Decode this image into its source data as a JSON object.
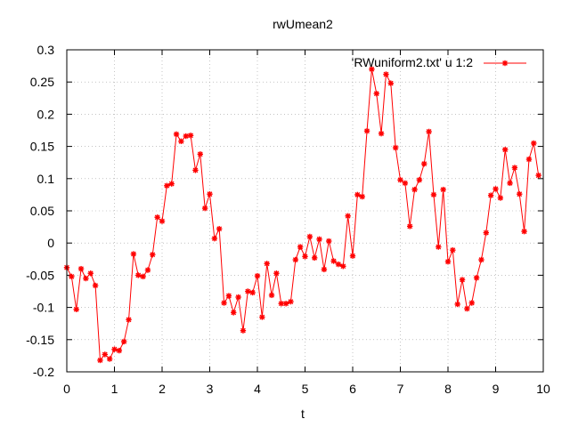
{
  "chart_data": {
    "type": "line",
    "title": "rwUmean2",
    "xlabel": "t",
    "ylabel": "",
    "xlim": [
      0,
      10
    ],
    "ylim": [
      -0.2,
      0.3
    ],
    "xticks": [
      0,
      1,
      2,
      3,
      4,
      5,
      6,
      7,
      8,
      9,
      10
    ],
    "yticks": [
      -0.2,
      -0.15,
      -0.1,
      -0.05,
      0,
      0.05,
      0.1,
      0.15,
      0.2,
      0.25,
      0.3
    ],
    "xtick_labels": [
      "0",
      "1",
      "2",
      "3",
      "4",
      "5",
      "6",
      "7",
      "8",
      "9",
      "10"
    ],
    "ytick_labels": [
      "-0.2",
      "-0.15",
      "-0.1",
      "-0.05",
      "0",
      "0.05",
      "0.1",
      "0.15",
      "0.2",
      "0.25",
      "0.3"
    ],
    "grid": true,
    "legend_position": "top-right",
    "color": "#ff0000",
    "series": [
      {
        "name": "'RWuniform2.txt' u 1:2",
        "x": [
          0.0,
          0.1,
          0.2,
          0.3,
          0.4,
          0.5,
          0.6,
          0.7,
          0.8,
          0.9,
          1.0,
          1.1,
          1.2,
          1.3,
          1.4,
          1.5,
          1.6,
          1.7,
          1.8,
          1.9,
          2.0,
          2.1,
          2.2,
          2.3,
          2.4,
          2.5,
          2.6,
          2.7,
          2.8,
          2.9,
          3.0,
          3.1,
          3.2,
          3.3,
          3.4,
          3.5,
          3.6,
          3.7,
          3.8,
          3.9,
          4.0,
          4.1,
          4.2,
          4.3,
          4.4,
          4.5,
          4.6,
          4.7,
          4.8,
          4.9,
          5.0,
          5.1,
          5.2,
          5.3,
          5.4,
          5.5,
          5.6,
          5.7,
          5.8,
          5.9,
          6.0,
          6.1,
          6.2,
          6.3,
          6.4,
          6.5,
          6.6,
          6.7,
          6.8,
          6.9,
          7.0,
          7.1,
          7.2,
          7.3,
          7.4,
          7.5,
          7.6,
          7.7,
          7.8,
          7.9,
          8.0,
          8.1,
          8.2,
          8.3,
          8.4,
          8.5,
          8.6,
          8.7,
          8.8,
          8.9,
          9.0,
          9.1,
          9.2,
          9.3,
          9.4,
          9.5,
          9.6,
          9.7,
          9.8,
          9.9
        ],
        "values": [
          -0.038,
          -0.052,
          -0.103,
          -0.04,
          -0.055,
          -0.047,
          -0.066,
          -0.182,
          -0.173,
          -0.18,
          -0.165,
          -0.167,
          -0.153,
          -0.119,
          -0.017,
          -0.05,
          -0.052,
          -0.042,
          -0.018,
          0.04,
          0.034,
          0.089,
          0.092,
          0.169,
          0.158,
          0.166,
          0.167,
          0.113,
          0.138,
          0.054,
          0.076,
          0.007,
          0.022,
          -0.093,
          -0.082,
          -0.108,
          -0.084,
          -0.136,
          -0.075,
          -0.077,
          -0.051,
          -0.115,
          -0.032,
          -0.081,
          -0.047,
          -0.094,
          -0.094,
          -0.091,
          -0.026,
          -0.006,
          -0.021,
          0.01,
          -0.023,
          0.006,
          -0.041,
          0.003,
          -0.028,
          -0.033,
          -0.036,
          0.042,
          -0.02,
          0.075,
          0.072,
          0.174,
          0.27,
          0.232,
          0.17,
          0.262,
          0.248,
          0.148,
          0.098,
          0.093,
          0.026,
          0.083,
          0.098,
          0.123,
          0.173,
          0.075,
          -0.006,
          0.083,
          -0.029,
          -0.011,
          -0.095,
          -0.057,
          -0.102,
          -0.093,
          -0.054,
          -0.026,
          0.016,
          0.074,
          0.084,
          0.07,
          0.145,
          0.093,
          0.117,
          0.076,
          0.018,
          0.13,
          0.155,
          0.105
        ]
      }
    ]
  }
}
